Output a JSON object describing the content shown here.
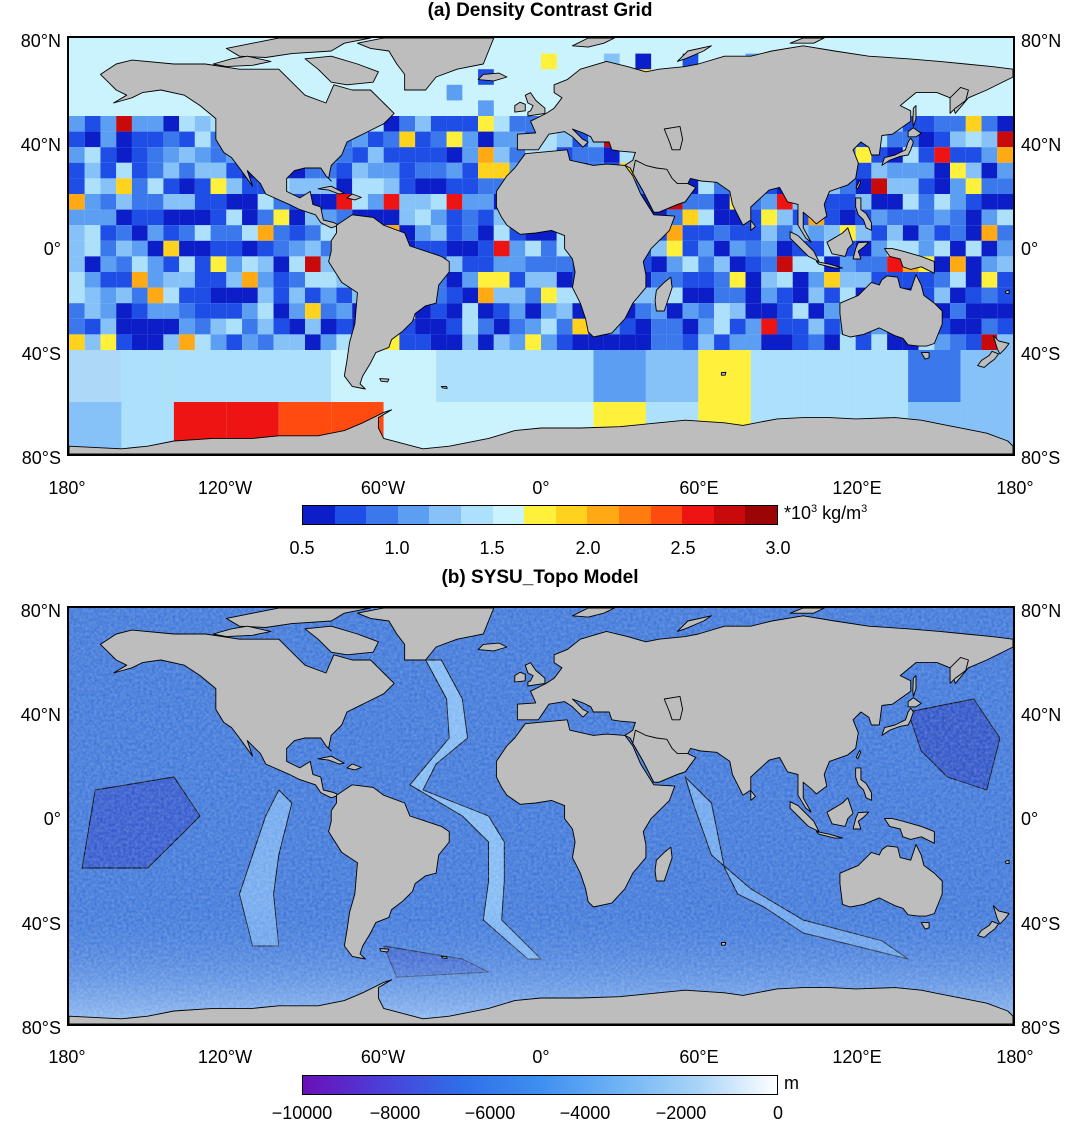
{
  "panel_a": {
    "title": "(a) Density Contrast Grid",
    "lat_labels": [
      "80°N",
      "40°N",
      "0°",
      "40°S",
      "80°S"
    ],
    "lon_labels": [
      "180°",
      "120°W",
      "60°W",
      "0°",
      "60°E",
      "120°E",
      "180°"
    ],
    "colorbar": {
      "unit_prefix": "*10",
      "unit_exp": "3",
      "unit_mid": " kg/m",
      "unit_exp2": "3",
      "ticks": [
        "0.5",
        "1.0",
        "1.5",
        "2.0",
        "2.5",
        "3.0"
      ],
      "min": 0.5,
      "max": 3.0,
      "colors": [
        "#0b1ec8",
        "#1f4ee6",
        "#3a78ec",
        "#5c9ff2",
        "#86c2f8",
        "#ade0fb",
        "#cbf3fd",
        "#fff03c",
        "#ffd21e",
        "#ffaa14",
        "#ff7d0f",
        "#ff4b0f",
        "#ee1414",
        "#c80a0a",
        "#9b0505"
      ]
    },
    "land_color": "#bdbdbd",
    "ocean_base_color": "#cbf3fd"
  },
  "panel_b": {
    "title": "(b) SYSU_Topo Model",
    "lat_labels": [
      "80°N",
      "40°N",
      "0°",
      "40°S",
      "80°S"
    ],
    "lon_labels": [
      "180°",
      "120°W",
      "60°W",
      "0°",
      "60°E",
      "120°E",
      "180°"
    ],
    "colorbar": {
      "unit": "m",
      "ticks": [
        "−10000",
        "−8000",
        "−6000",
        "−4000",
        "−2000",
        "0"
      ],
      "min": -10000,
      "max": 0,
      "colors": [
        "#6a0fb8",
        "#4b3fd8",
        "#2f6ee8",
        "#3d8ff0",
        "#6fb3f5",
        "#a8d4f8",
        "#ffffff"
      ]
    },
    "land_color": "#bdbdbd",
    "ocean_base_color": "#3b74d8"
  }
}
